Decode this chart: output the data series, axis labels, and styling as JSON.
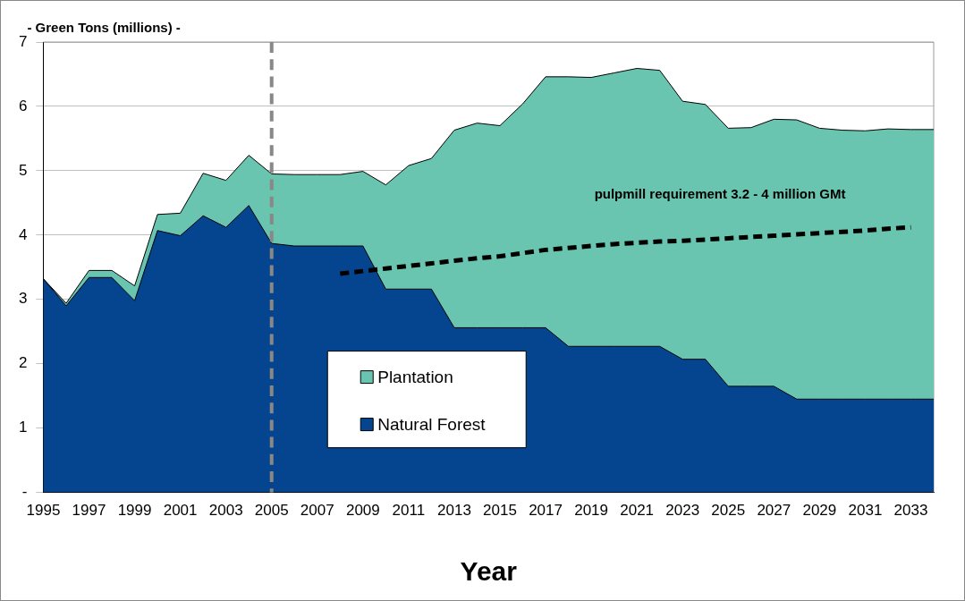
{
  "chart_data": {
    "type": "area",
    "stacked": true,
    "ylabel": "- Green Tons (millions) -",
    "xlabel": "Year",
    "categories": [
      "1995",
      null,
      "1997",
      null,
      "1999",
      null,
      "2001",
      null,
      "2003",
      null,
      "2005",
      null,
      "2007",
      null,
      "2009",
      null,
      "2011",
      null,
      "2013",
      null,
      "2015",
      null,
      "2017",
      null,
      "2019",
      null,
      "2021",
      null,
      "2023",
      null,
      "2025",
      null,
      "2027",
      null,
      "2029",
      null,
      "2031",
      null,
      "2033",
      null
    ],
    "series": [
      {
        "name": "Natural Forest",
        "color": "#05448f",
        "values": [
          3.32,
          2.9,
          3.34,
          3.34,
          2.98,
          4.07,
          3.99,
          4.3,
          4.12,
          4.46,
          3.87,
          3.83,
          3.83,
          3.83,
          3.83,
          3.16,
          3.16,
          3.16,
          2.56,
          2.56,
          2.56,
          2.56,
          2.56,
          2.27,
          2.27,
          2.27,
          2.27,
          2.27,
          2.07,
          2.07,
          1.65,
          1.65,
          1.65,
          1.45,
          1.45,
          1.45,
          1.45,
          1.45,
          1.45,
          1.45
        ]
      },
      {
        "name": "Plantation",
        "color": "#69c5b0",
        "values": [
          0,
          0.04,
          0.11,
          0.11,
          0.23,
          0.25,
          0.35,
          0.66,
          0.73,
          0.78,
          1.08,
          1.11,
          1.11,
          1.11,
          1.16,
          1.62,
          1.92,
          2.03,
          3.07,
          3.18,
          3.14,
          3.48,
          3.9,
          4.19,
          4.18,
          4.25,
          4.32,
          4.29,
          4.01,
          3.96,
          4.01,
          4.02,
          4.15,
          4.34,
          4.21,
          4.18,
          4.17,
          4.2,
          4.19,
          4.19
        ]
      },
      {
        "type": "line",
        "color": "#000000",
        "line_style": "dashed",
        "values": [
          null,
          null,
          null,
          null,
          null,
          null,
          null,
          null,
          null,
          null,
          null,
          null,
          null,
          3.4,
          3.44,
          3.48,
          3.52,
          3.56,
          3.6,
          3.64,
          3.67,
          3.72,
          3.77,
          3.8,
          3.83,
          3.86,
          3.88,
          3.9,
          3.91,
          3.93,
          3.95,
          3.97,
          3.99,
          4.01,
          4.03,
          4.05,
          4.07,
          4.1,
          4.12,
          null
        ]
      }
    ],
    "ylim": [
      0,
      7
    ],
    "yticks": [
      {
        "value": 0,
        "label": "-"
      },
      1,
      2,
      3,
      4,
      5,
      6,
      7
    ],
    "grid": "y",
    "legend": "bottom",
    "ref_lines": [
      {
        "axis": "x",
        "value": "2005",
        "color": "#888888",
        "line_style": "dashed"
      }
    ],
    "annotations": [
      "pulpmill requirement 3.2 - 4 million GMt"
    ]
  }
}
